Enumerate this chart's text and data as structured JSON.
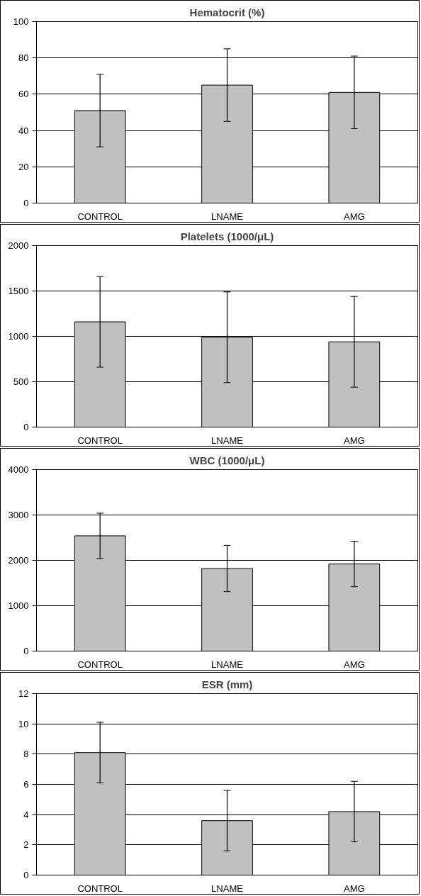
{
  "chart_data": [
    {
      "type": "bar",
      "title": "Hematocrit (%)",
      "categories": [
        "CONTROL",
        "LNAME",
        "AMG"
      ],
      "values": [
        51,
        65,
        61
      ],
      "errors": [
        20,
        20,
        20
      ],
      "colors": [
        "#c0c0c0",
        "#c0c0c0",
        "#c0c0c0"
      ],
      "ylim": [
        0,
        100
      ],
      "yticks": [
        0,
        20,
        40,
        60,
        80,
        100
      ],
      "grid": "y"
    },
    {
      "type": "bar",
      "title": "Platelets (1000/μL)",
      "categories": [
        "CONTROL",
        "LNAME",
        "AMG"
      ],
      "values": [
        1160,
        990,
        940
      ],
      "errors": [
        500,
        500,
        500
      ],
      "colors": [
        "#c0c0c0",
        "#c0c0c0",
        "#c0c0c0"
      ],
      "ylim": [
        0,
        2000
      ],
      "yticks": [
        0,
        500,
        1000,
        1500,
        2000
      ],
      "grid": "y"
    },
    {
      "type": "bar",
      "title": "WBC (1000/μL)",
      "categories": [
        "CONTROL",
        "LNAME",
        "AMG"
      ],
      "values": [
        2540,
        1820,
        1920
      ],
      "errors": [
        500,
        510,
        500
      ],
      "colors": [
        "#c0c0c0",
        "#c0c0c0",
        "#c0c0c0"
      ],
      "ylim": [
        0,
        4000
      ],
      "yticks": [
        0,
        1000,
        2000,
        3000,
        4000
      ],
      "grid": "y"
    },
    {
      "type": "bar",
      "title": "ESR (mm)",
      "categories": [
        "CONTROL",
        "LNAME",
        "AMG"
      ],
      "values": [
        8.1,
        3.6,
        4.2
      ],
      "errors": [
        2,
        2,
        2
      ],
      "colors": [
        "#c0c0c0",
        "#c0c0c0",
        "#c0c0c0"
      ],
      "ylim": [
        0,
        12
      ],
      "yticks": [
        0,
        2,
        4,
        6,
        8,
        10,
        12
      ],
      "grid": "y"
    }
  ]
}
